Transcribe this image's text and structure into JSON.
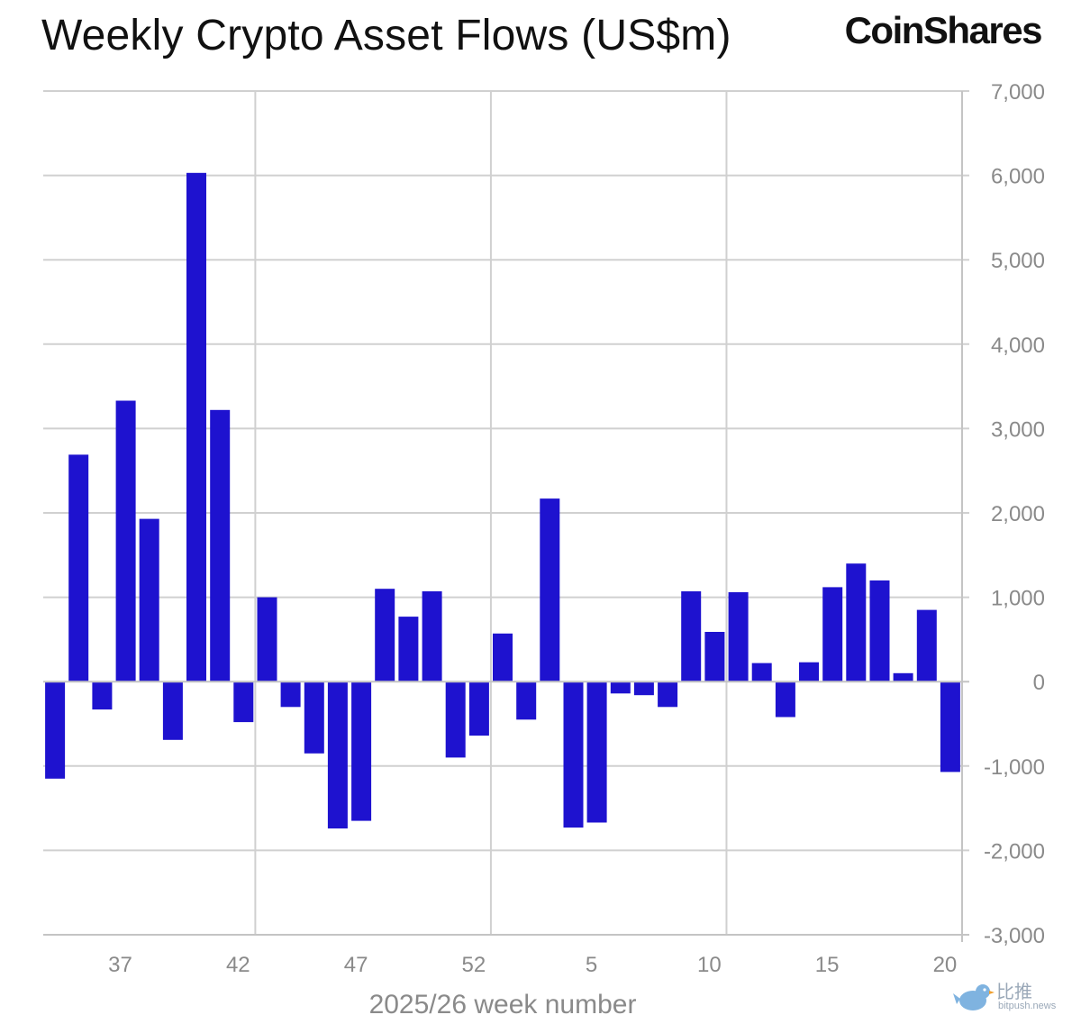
{
  "title": "Weekly Crypto Asset Flows (US$m)",
  "brand": "CoinShares",
  "watermark": {
    "cn": "比推",
    "en": "bitpush.news"
  },
  "chart_data": {
    "type": "bar",
    "title": "Weekly Crypto Asset Flows (US$m)",
    "xlabel": "2025/26 week number",
    "ylabel": "",
    "ylim": [
      -3000,
      7000
    ],
    "yticks": [
      7000,
      6000,
      5000,
      4000,
      3000,
      2000,
      1000,
      0,
      -1000,
      -2000,
      -3000
    ],
    "ytick_labels": [
      "7,000",
      "6,000",
      "5,000",
      "4,000",
      "3,000",
      "2,000",
      "1,000",
      "0",
      "-1,000",
      "-2,000",
      "-3,000"
    ],
    "xtick_labels": [
      {
        "label": "37",
        "week_index": 3.5
      },
      {
        "label": "42",
        "week_index": 8.5
      },
      {
        "label": "47",
        "week_index": 13.5
      },
      {
        "label": "52",
        "week_index": 18.5
      },
      {
        "label": "5",
        "week_index": 23.5
      },
      {
        "label": "10",
        "week_index": 28.5
      },
      {
        "label": "15",
        "week_index": 33.5
      },
      {
        "label": "20",
        "week_index": 38.5
      }
    ],
    "grid": true,
    "bar_color": "#1e12cf",
    "values": [
      -1150,
      2690,
      -330,
      3330,
      1930,
      -690,
      6030,
      3220,
      -480,
      1000,
      -300,
      -850,
      -1740,
      -1650,
      1100,
      770,
      1070,
      -900,
      -640,
      570,
      -450,
      2170,
      -1730,
      -1670,
      -140,
      -160,
      -300,
      1070,
      590,
      1060,
      220,
      -420,
      230,
      1120,
      1400,
      1200,
      100,
      850,
      -1070
    ]
  }
}
